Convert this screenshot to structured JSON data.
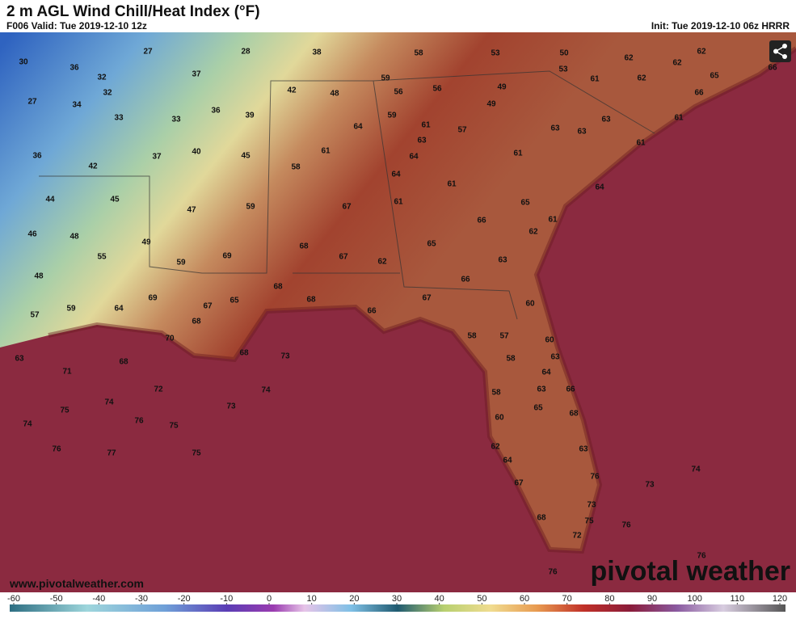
{
  "header": {
    "title": "2 m AGL Wind Chill/Heat Index (°F)",
    "valid": "F006 Valid: Tue 2019-12-10 12z",
    "init": "Init: Tue 2019-12-10 06z HRRR"
  },
  "labels": [
    30,
    36,
    27,
    28,
    38,
    58,
    53,
    50,
    62,
    62,
    62,
    66,
    32,
    37,
    59,
    53,
    61,
    62,
    65,
    27,
    34,
    32,
    42,
    48,
    56,
    56,
    49,
    66,
    33,
    33,
    36,
    39,
    59,
    49,
    61,
    64,
    61,
    57,
    63,
    63,
    63,
    36,
    37,
    40,
    45,
    61,
    63,
    61,
    61,
    42,
    58,
    64,
    64,
    61,
    64,
    44,
    45,
    47,
    59,
    67,
    61,
    65,
    66,
    61,
    46,
    48,
    49,
    62,
    55,
    59,
    68,
    69,
    67,
    65,
    62,
    63,
    48,
    66,
    68,
    59,
    64,
    69,
    67,
    65,
    68,
    67,
    60,
    57,
    68,
    66,
    70,
    58,
    57,
    60,
    63,
    68,
    73,
    58,
    63,
    68,
    71,
    64,
    72,
    74,
    63,
    58,
    66,
    74,
    73,
    65,
    68,
    75,
    76,
    75,
    60,
    74,
    76,
    77,
    75,
    62,
    63,
    64,
    74,
    67,
    76,
    73,
    73,
    68,
    75,
    76,
    72,
    76,
    76
  ],
  "colorbar": {
    "ticks": [
      -60,
      -50,
      -40,
      -30,
      -20,
      -10,
      0,
      10,
      20,
      30,
      40,
      50,
      60,
      70,
      80,
      90,
      100,
      110,
      120
    ]
  },
  "footer": {
    "website": "www.pivotalweather.com",
    "logo": "pivotal weather"
  }
}
